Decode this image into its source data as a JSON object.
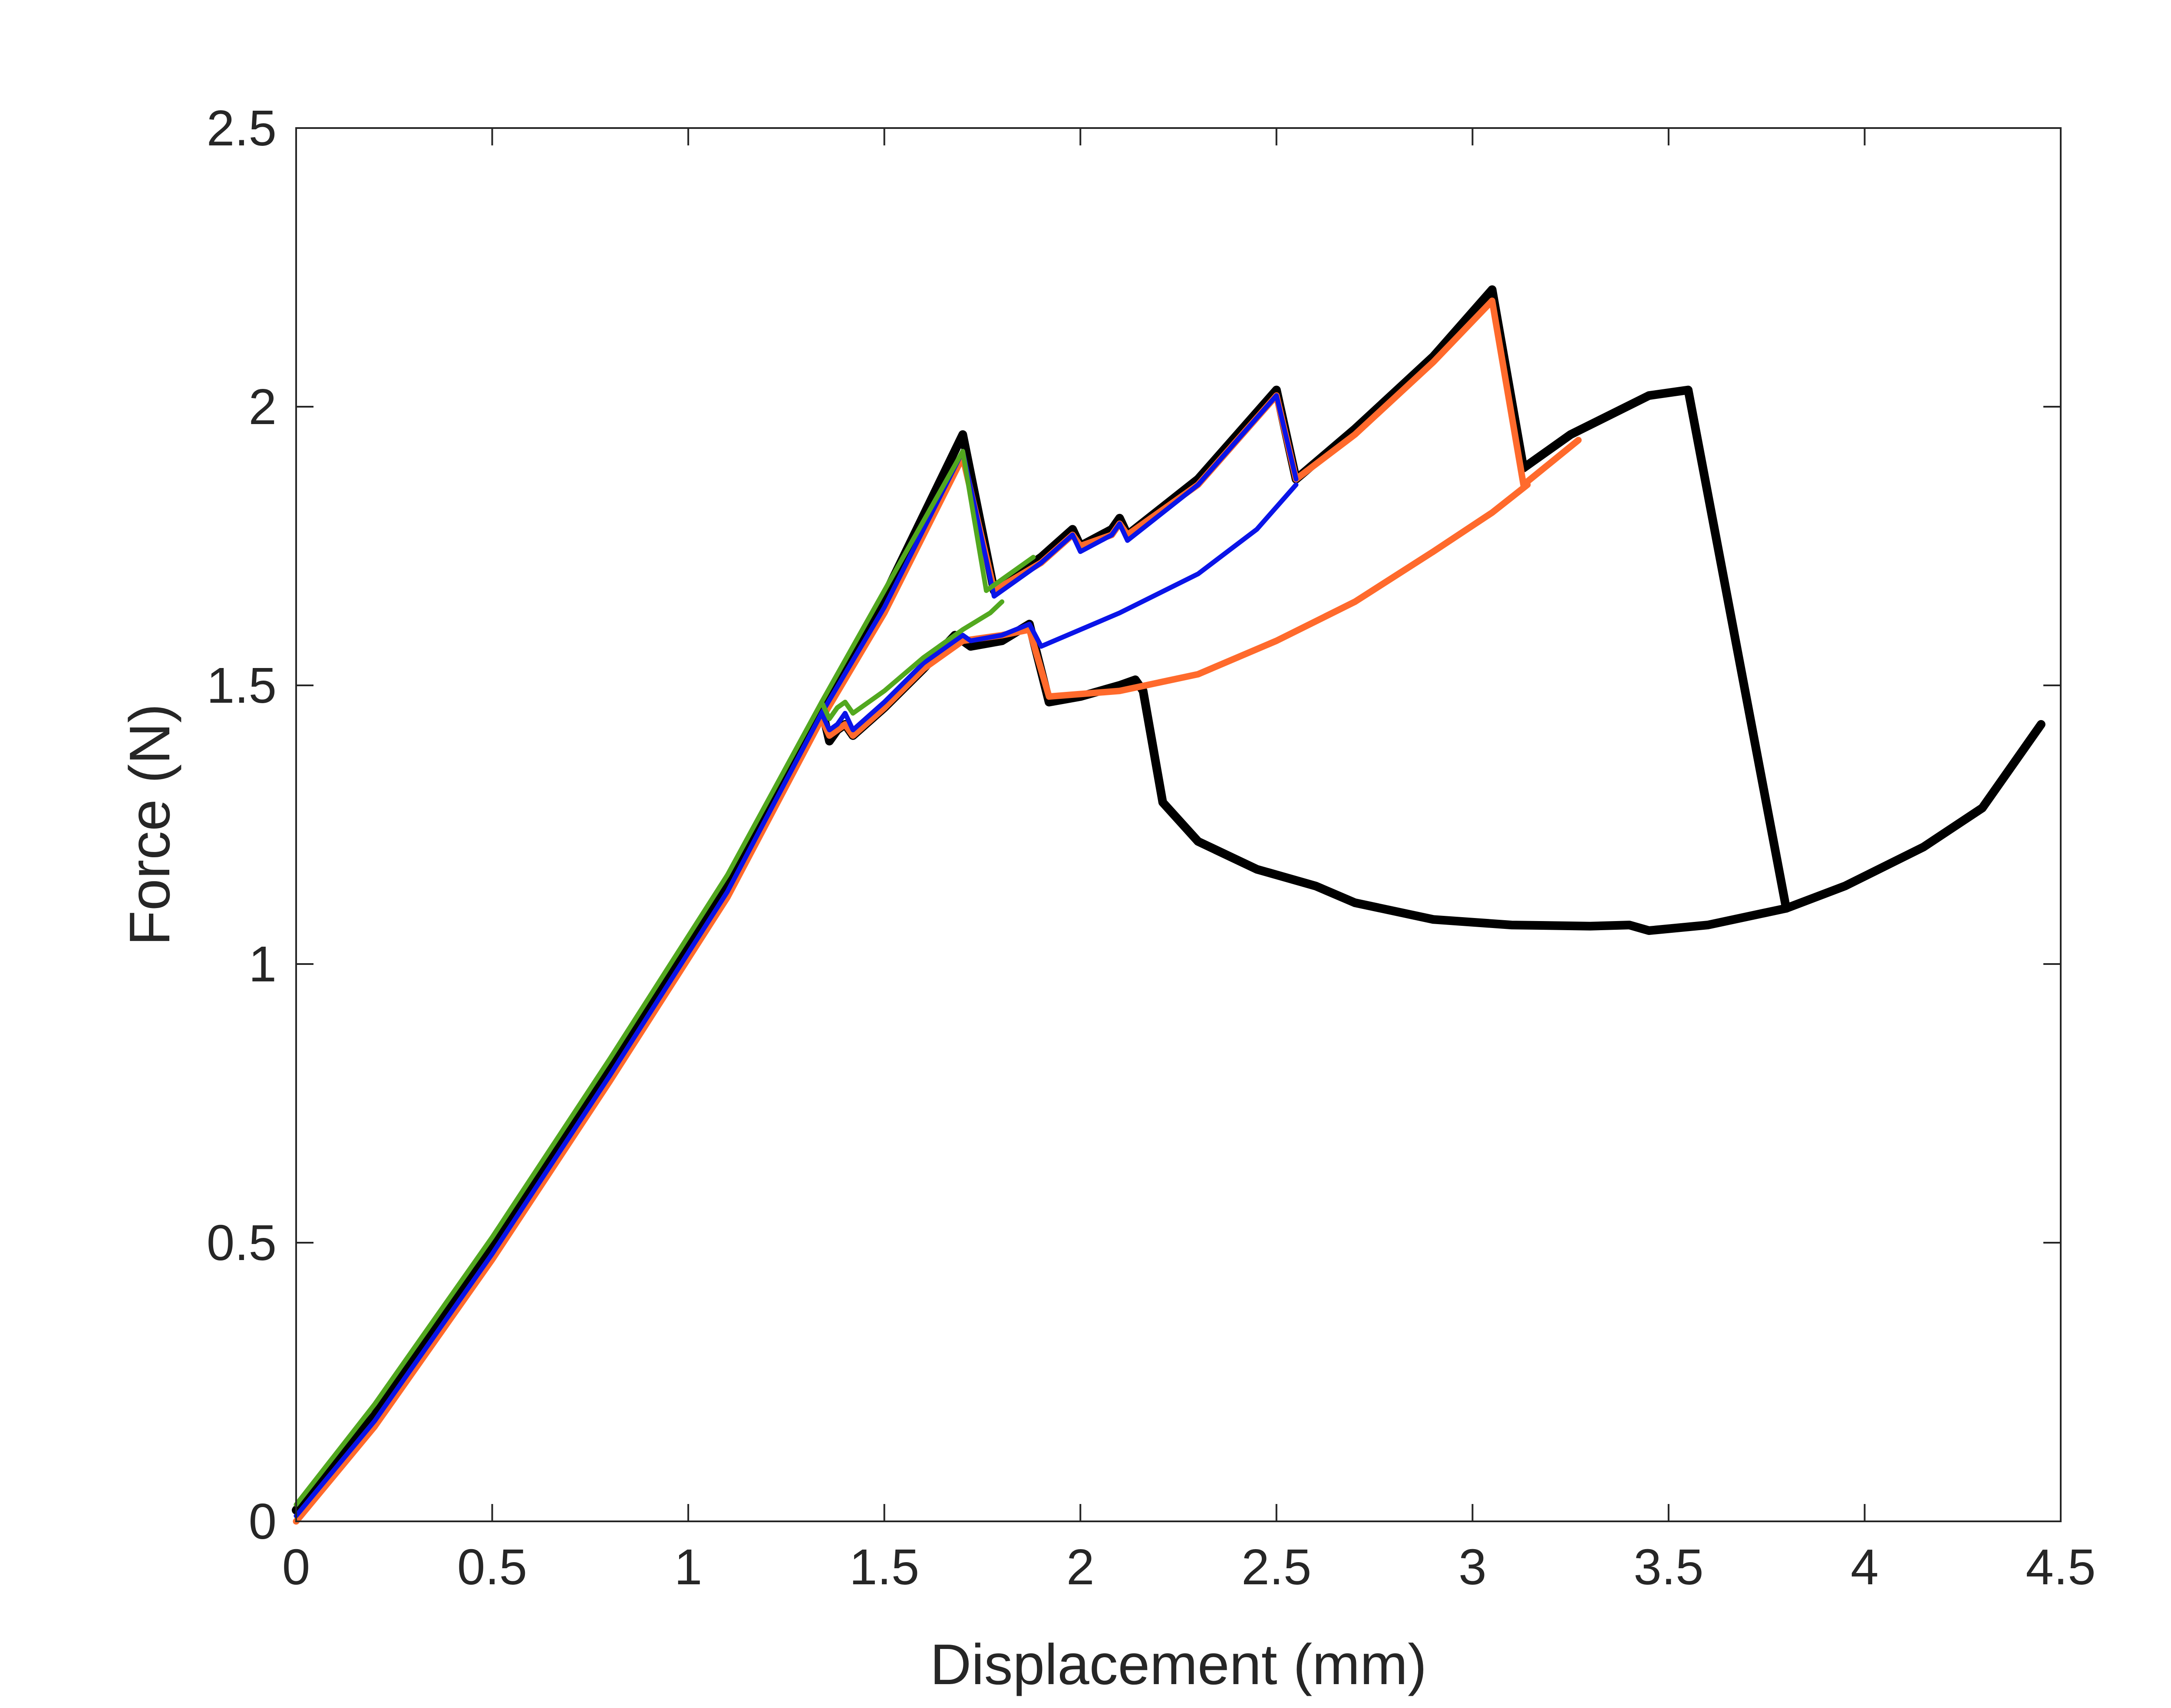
{
  "chart_data": {
    "type": "line",
    "title": "",
    "xlabel": "Displacement (mm)",
    "ylabel": "Force (N)",
    "xlim": [
      0,
      4.5
    ],
    "ylim": [
      0,
      2.5
    ],
    "xticks": [
      0,
      0.5,
      1,
      1.5,
      2,
      2.5,
      3,
      3.5,
      4,
      4.5
    ],
    "xtick_labels": [
      "0",
      "0.5",
      "1",
      "1.5",
      "2",
      "2.5",
      "3",
      "3.5",
      "4",
      "4.5"
    ],
    "yticks": [
      0,
      0.5,
      1,
      1.5,
      2,
      2.5
    ],
    "ytick_labels": [
      "0",
      "0.5",
      "1",
      "1.5",
      "2",
      "2.5"
    ],
    "grid": false,
    "legend": "none",
    "series": [
      {
        "name": "black",
        "color": "#000000",
        "width": 20,
        "points": [
          [
            0,
            0.02
          ],
          [
            0.2,
            0.19
          ],
          [
            0.5,
            0.5
          ],
          [
            0.8,
            0.82
          ],
          [
            1.1,
            1.15
          ],
          [
            1.34,
            1.46
          ],
          [
            1.5,
            1.66
          ],
          [
            1.7,
            1.95
          ],
          [
            1.78,
            1.67
          ],
          [
            1.9,
            1.73
          ],
          [
            1.98,
            1.78
          ],
          [
            2.0,
            1.75
          ],
          [
            2.08,
            1.78
          ],
          [
            2.1,
            1.8
          ],
          [
            2.12,
            1.77
          ],
          [
            2.3,
            1.87
          ],
          [
            2.5,
            2.03
          ],
          [
            2.55,
            1.87
          ],
          [
            2.7,
            1.96
          ],
          [
            2.9,
            2.09
          ],
          [
            3.05,
            2.21
          ],
          [
            3.13,
            1.89
          ],
          [
            3.25,
            1.95
          ],
          [
            3.45,
            2.02
          ],
          [
            3.55,
            2.03
          ],
          [
            3.8,
            1.1
          ],
          [
            3.95,
            1.14
          ],
          [
            4.15,
            1.21
          ],
          [
            4.3,
            1.28
          ],
          [
            4.45,
            1.43
          ]
        ]
      },
      {
        "name": "black-lower",
        "color": "#000000",
        "width": 20,
        "points": [
          [
            1.34,
            1.46
          ],
          [
            1.36,
            1.4
          ],
          [
            1.38,
            1.42
          ],
          [
            1.4,
            1.43
          ],
          [
            1.42,
            1.41
          ],
          [
            1.5,
            1.46
          ],
          [
            1.6,
            1.53
          ],
          [
            1.68,
            1.59
          ],
          [
            1.72,
            1.57
          ],
          [
            1.8,
            1.58
          ],
          [
            1.87,
            1.61
          ],
          [
            1.92,
            1.47
          ],
          [
            2.0,
            1.48
          ],
          [
            2.1,
            1.5
          ],
          [
            2.14,
            1.51
          ],
          [
            2.16,
            1.49
          ],
          [
            2.21,
            1.29
          ],
          [
            2.3,
            1.22
          ],
          [
            2.45,
            1.17
          ],
          [
            2.6,
            1.14
          ],
          [
            2.7,
            1.11
          ],
          [
            2.9,
            1.08
          ],
          [
            3.1,
            1.07
          ],
          [
            3.3,
            1.068
          ],
          [
            3.4,
            1.07
          ],
          [
            3.45,
            1.06
          ],
          [
            3.6,
            1.07
          ],
          [
            3.8,
            1.1
          ]
        ]
      },
      {
        "name": "orange",
        "color": "#ff6a2c",
        "width": 15,
        "points": [
          [
            0,
            0
          ],
          [
            0.2,
            0.17
          ],
          [
            0.5,
            0.47
          ],
          [
            0.8,
            0.79
          ],
          [
            1.1,
            1.12
          ],
          [
            1.34,
            1.44
          ],
          [
            1.5,
            1.63
          ],
          [
            1.7,
            1.91
          ],
          [
            1.78,
            1.67
          ],
          [
            1.9,
            1.72
          ],
          [
            1.98,
            1.77
          ],
          [
            2.0,
            1.75
          ],
          [
            2.08,
            1.77
          ],
          [
            2.1,
            1.79
          ],
          [
            2.12,
            1.77
          ],
          [
            2.3,
            1.86
          ],
          [
            2.5,
            2.02
          ],
          [
            2.55,
            1.87
          ],
          [
            2.7,
            1.95
          ],
          [
            2.9,
            2.08
          ],
          [
            3.05,
            2.19
          ],
          [
            3.13,
            1.86
          ],
          [
            3.2,
            1.9
          ],
          [
            3.27,
            1.94
          ]
        ]
      },
      {
        "name": "orange-lower",
        "color": "#ff6a2c",
        "width": 15,
        "points": [
          [
            1.34,
            1.44
          ],
          [
            1.36,
            1.41
          ],
          [
            1.38,
            1.42
          ],
          [
            1.4,
            1.43
          ],
          [
            1.42,
            1.41
          ],
          [
            1.5,
            1.46
          ],
          [
            1.6,
            1.53
          ],
          [
            1.7,
            1.58
          ],
          [
            1.8,
            1.59
          ],
          [
            1.87,
            1.6
          ],
          [
            1.92,
            1.48
          ],
          [
            2.1,
            1.49
          ],
          [
            2.3,
            1.52
          ],
          [
            2.5,
            1.58
          ],
          [
            2.7,
            1.65
          ],
          [
            2.9,
            1.74
          ],
          [
            3.05,
            1.81
          ],
          [
            3.14,
            1.86
          ]
        ]
      },
      {
        "name": "blue",
        "color": "#0a14e8",
        "width": 11,
        "points": [
          [
            0,
            0.01
          ],
          [
            0.2,
            0.18
          ],
          [
            0.5,
            0.48
          ],
          [
            0.8,
            0.8
          ],
          [
            1.1,
            1.13
          ],
          [
            1.34,
            1.45
          ],
          [
            1.5,
            1.64
          ],
          [
            1.7,
            1.92
          ],
          [
            1.78,
            1.66
          ],
          [
            1.9,
            1.72
          ],
          [
            1.98,
            1.77
          ],
          [
            2.0,
            1.74
          ],
          [
            2.08,
            1.77
          ],
          [
            2.1,
            1.79
          ],
          [
            2.12,
            1.76
          ],
          [
            2.3,
            1.86
          ],
          [
            2.5,
            2.02
          ],
          [
            2.55,
            1.87
          ]
        ]
      },
      {
        "name": "blue-lower",
        "color": "#0a14e8",
        "width": 11,
        "points": [
          [
            1.34,
            1.45
          ],
          [
            1.36,
            1.42
          ],
          [
            1.38,
            1.43
          ],
          [
            1.4,
            1.45
          ],
          [
            1.42,
            1.42
          ],
          [
            1.5,
            1.47
          ],
          [
            1.6,
            1.54
          ],
          [
            1.68,
            1.58
          ],
          [
            1.7,
            1.59
          ],
          [
            1.72,
            1.58
          ],
          [
            1.8,
            1.59
          ],
          [
            1.87,
            1.61
          ],
          [
            1.9,
            1.57
          ],
          [
            2.1,
            1.63
          ],
          [
            2.3,
            1.7
          ],
          [
            2.45,
            1.78
          ],
          [
            2.55,
            1.86
          ]
        ]
      },
      {
        "name": "green",
        "color": "#52a81f",
        "width": 11,
        "points": [
          [
            0,
            0.03
          ],
          [
            0.2,
            0.21
          ],
          [
            0.5,
            0.51
          ],
          [
            0.8,
            0.83
          ],
          [
            1.1,
            1.16
          ],
          [
            1.34,
            1.47
          ],
          [
            1.5,
            1.67
          ],
          [
            1.7,
            1.92
          ],
          [
            1.76,
            1.67
          ],
          [
            1.8,
            1.69
          ],
          [
            1.88,
            1.73
          ]
        ]
      },
      {
        "name": "green-lower",
        "color": "#52a81f",
        "width": 11,
        "points": [
          [
            1.34,
            1.47
          ],
          [
            1.36,
            1.44
          ],
          [
            1.38,
            1.46
          ],
          [
            1.4,
            1.47
          ],
          [
            1.42,
            1.45
          ],
          [
            1.5,
            1.49
          ],
          [
            1.6,
            1.55
          ],
          [
            1.7,
            1.6
          ],
          [
            1.77,
            1.63
          ],
          [
            1.8,
            1.65
          ]
        ]
      }
    ]
  }
}
